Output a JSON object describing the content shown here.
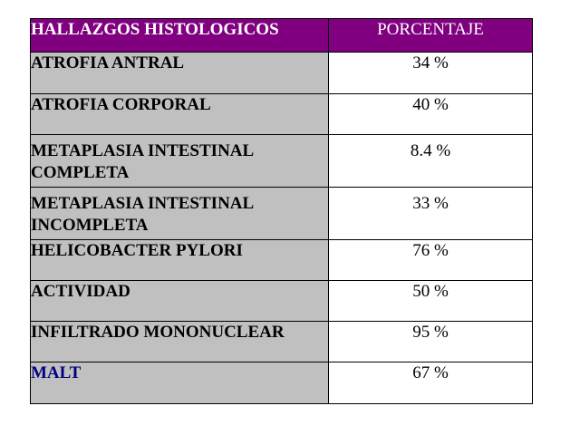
{
  "chart_data": {
    "type": "table",
    "columns": [
      "HALLAZGOS HISTOLOGICOS",
      "PORCENTAJE"
    ],
    "rows": [
      {
        "label": "ATROFIA ANTRAL",
        "value": "34 %"
      },
      {
        "label": "ATROFIA CORPORAL",
        "value": "40 %"
      },
      {
        "label": "METAPLASIA INTESTINAL COMPLETA",
        "value": "8.4 %"
      },
      {
        "label": "METAPLASIA INTESTINAL INCOMPLETA",
        "value": "33 %"
      },
      {
        "label": "HELICOBACTER PYLORI",
        "value": "76 %"
      },
      {
        "label": "ACTIVIDAD",
        "value": "50 %"
      },
      {
        "label": "INFILTRADO MONONUCLEAR",
        "value": "95 %"
      },
      {
        "label": "MALT",
        "value": "67 %"
      }
    ]
  },
  "colors": {
    "header_background": "#800080",
    "header_text": "#ffffff",
    "label_background": "#c0c0c0",
    "value_background": "#ffffff",
    "highlight_label_text": "#000080"
  }
}
